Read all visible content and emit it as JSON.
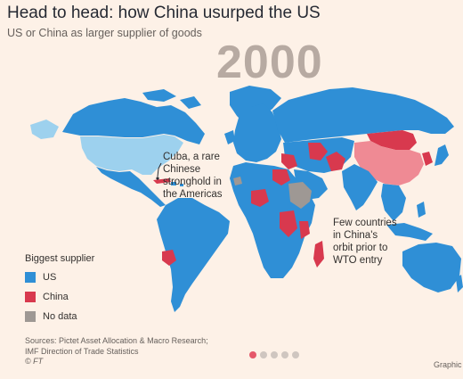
{
  "header": {
    "title": "Head to head: how China usurped the US",
    "subtitle": "US or China as larger supplier of goods",
    "year": "2000"
  },
  "colors": {
    "us": "#2f8fd6",
    "china": "#d8394e",
    "china_light": "#ef8a94",
    "no_data": "#9e9894",
    "usa": "#9dd1ee",
    "background": "#fdf1e7",
    "slide_active": "#e5586a",
    "slide_inactive": "#cfc6c0"
  },
  "annotations": {
    "cuba": [
      "Cuba, a rare",
      "Chinese",
      "stronghold in",
      "the Americas"
    ],
    "wto": [
      "Few countries",
      "in China's",
      "orbit prior to",
      "WTO entry"
    ]
  },
  "legend": {
    "title": "Biggest supplier",
    "items": [
      {
        "label": "US",
        "color": "#2f8fd6"
      },
      {
        "label": "China",
        "color": "#d8394e"
      },
      {
        "label": "No data",
        "color": "#9e9894"
      }
    ]
  },
  "footer": {
    "sources_line1": "Sources: Pictet Asset Allocation & Macro Research;",
    "sources_line2": "IMF Direction of Trade Statistics",
    "ft_credit": "© FT",
    "graphic_credit": "Graphic",
    "slide_count": 5,
    "active_slide": 1
  }
}
